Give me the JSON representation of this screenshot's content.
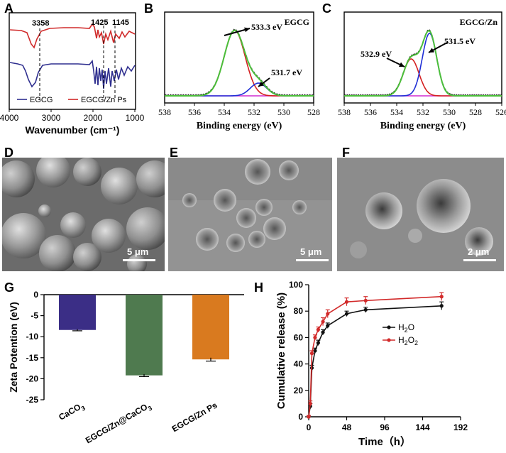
{
  "panel_labels": {
    "a": "A",
    "b": "B",
    "c": "C",
    "d": "D",
    "e": "E",
    "f": "F",
    "g": "G",
    "h": "H"
  },
  "colors": {
    "egcg": "#2f2f8f",
    "egcg_zn": "#d02a2a",
    "green": "#4bbf3a",
    "blue": "#1f2fd6",
    "red": "#d42020",
    "magenta": "#d12bd1",
    "olive": "#c8a000",
    "bar_caco3": "#3b2e86",
    "bar_egcgzn_caco3": "#4f7a4f",
    "bar_egcgzn_ps": "#d97a1f",
    "h2o": "#111111",
    "h2o2": "#d22a2a"
  },
  "scale_bars": {
    "d": "5 μm",
    "e": "5 μm",
    "f": "2 μm"
  },
  "chart_data": [
    {
      "id": "A",
      "type": "line",
      "xlabel": "Wavenumber (cm⁻¹)",
      "xticks": [
        "4000",
        "3000",
        "2000",
        "1000"
      ],
      "x_reversed": true,
      "annotations": [
        "3358",
        "1425",
        "1145"
      ],
      "legend": [
        "EGCG",
        "EGCG/Zn Ps"
      ]
    },
    {
      "id": "B",
      "type": "line",
      "title": "EGCG",
      "xlabel": "Binding energy (eV)",
      "xticks": [
        "538",
        "536",
        "534",
        "532",
        "530",
        "528"
      ],
      "xlim": [
        538,
        528
      ],
      "peaks": [
        {
          "label": "533.3 eV",
          "center": 533.3
        },
        {
          "label": "531.7 eV",
          "center": 531.7
        }
      ]
    },
    {
      "id": "C",
      "type": "line",
      "title": "EGCG/Zn",
      "xlabel": "Binding energy (eV)",
      "xticks": [
        "538",
        "536",
        "534",
        "532",
        "530",
        "528",
        "526"
      ],
      "xlim": [
        538,
        526
      ],
      "peaks": [
        {
          "label": "532.9 eV",
          "center": 532.9
        },
        {
          "label": "531.5 eV",
          "center": 531.5
        }
      ]
    },
    {
      "id": "G",
      "type": "bar",
      "ylabel": "Zeta Potention (eV)",
      "ylim": [
        -25,
        0
      ],
      "yticks": [
        "0",
        "-5",
        "-10",
        "-15",
        "-20",
        "-25"
      ],
      "categories": [
        "CaCO3",
        "EGCG/Zn@CaCO3",
        "EGCG/Zn Ps"
      ],
      "category_labels": [
        {
          "base": "CaCO",
          "sub": "3",
          "rest": ""
        },
        {
          "base": "EGCG/Zn@CaCO",
          "sub": "3",
          "rest": ""
        },
        {
          "base": "EGCG/Zn Ps",
          "sub": "",
          "rest": ""
        }
      ],
      "values": [
        -8.4,
        -19.2,
        -15.4
      ],
      "errors": [
        0.2,
        0.3,
        0.4
      ]
    },
    {
      "id": "H",
      "type": "line",
      "xlabel": "Time（h）",
      "ylabel": "Cumulative release (%)",
      "xlim": [
        0,
        192
      ],
      "ylim": [
        0,
        100
      ],
      "xticks": [
        "0",
        "48",
        "96",
        "144",
        "192"
      ],
      "yticks": [
        "0",
        "20",
        "40",
        "60",
        "80",
        "100"
      ],
      "legend": [
        {
          "base": "H",
          "sub": "2",
          "rest": "O"
        },
        {
          "base": "H",
          "sub": "2",
          "rest": "O",
          "sub2": "2"
        }
      ],
      "series": [
        {
          "name": "H2O",
          "x": [
            0,
            2,
            4,
            8,
            12,
            18,
            24,
            48,
            72,
            168
          ],
          "y": [
            0,
            8,
            37,
            50,
            56,
            64,
            69,
            78,
            81,
            84
          ],
          "err": [
            1,
            2,
            2,
            2,
            2,
            2,
            2,
            2,
            2,
            3
          ]
        },
        {
          "name": "H2O2",
          "x": [
            0,
            2,
            4,
            8,
            12,
            18,
            24,
            48,
            72,
            168
          ],
          "y": [
            0,
            10,
            48,
            60,
            66,
            72,
            78,
            87,
            88,
            91
          ],
          "err": [
            1,
            2,
            2,
            2,
            2,
            3,
            3,
            3,
            3,
            3
          ]
        }
      ]
    }
  ]
}
